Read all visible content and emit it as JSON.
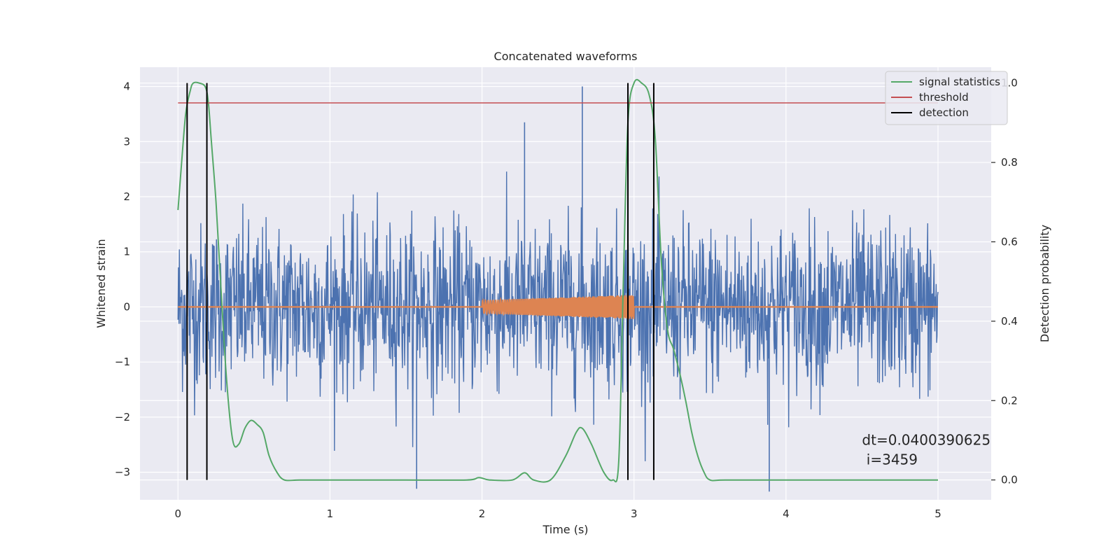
{
  "chart_data": {
    "type": "line",
    "title": "Concatenated waveforms",
    "xlabel": "Time (s)",
    "ylabel": "Whitened strain",
    "ylabel_right": "Detection probability",
    "xlim": [
      -0.25,
      5.35
    ],
    "ylim": [
      -3.5,
      4.35
    ],
    "ylim_right": [
      -0.05,
      1.04
    ],
    "xticks": [
      0,
      1,
      2,
      3,
      4,
      5
    ],
    "yticks": [
      -3,
      -2,
      -1,
      0,
      1,
      2,
      3,
      4
    ],
    "yticks_right": [
      0.0,
      0.2,
      0.4,
      0.6,
      0.8,
      1.0
    ],
    "xtick_labels": [
      "0",
      "1",
      "2",
      "3",
      "4",
      "5"
    ],
    "ytick_labels": [
      "−3",
      "−2",
      "−1",
      "0",
      "1",
      "2",
      "3",
      "4"
    ],
    "ytick_right_labels": [
      "0.0",
      "0.2",
      "0.4",
      "0.6",
      "0.8",
      "1.0"
    ],
    "grid": true,
    "legend_position": "top-right",
    "series": [
      {
        "name": "",
        "axis": "left",
        "color": "#4c72b0",
        "kind": "noise",
        "x_range": [
          0,
          5
        ],
        "peak_spikes": [
          [
            1.57,
            -3.3
          ],
          [
            2.66,
            4.0
          ],
          [
            3.89,
            -3.35
          ],
          [
            2.28,
            3.35
          ]
        ]
      },
      {
        "name": "",
        "axis": "left",
        "color": "#dd8452",
        "kind": "chirp",
        "baseline": [
          [
            0,
            0
          ],
          [
            5,
            0
          ]
        ],
        "chirp_range": [
          2.0,
          3.0
        ],
        "chirp_amplitude": [
          0.12,
          0.22
        ]
      },
      {
        "name": "signal statistics",
        "axis": "right",
        "color": "#55a868",
        "x": [
          0,
          0.02,
          0.05,
          0.08,
          0.1,
          0.14,
          0.18,
          0.2,
          0.22,
          0.25,
          0.28,
          0.32,
          0.36,
          0.4,
          0.44,
          0.48,
          0.52,
          0.56,
          0.6,
          0.65,
          0.7,
          0.8,
          1.0,
          1.5,
          1.9,
          1.98,
          2.05,
          2.2,
          2.28,
          2.34,
          2.45,
          2.55,
          2.62,
          2.66,
          2.72,
          2.8,
          2.86,
          2.9,
          2.93,
          2.96,
          3.0,
          3.05,
          3.1,
          3.14,
          3.18,
          3.22,
          3.26,
          3.3,
          3.34,
          3.38,
          3.42,
          3.46,
          3.5,
          3.6,
          4.0,
          4.5,
          5.0
        ],
        "values": [
          0.68,
          0.78,
          0.92,
          0.98,
          1.0,
          1.0,
          0.99,
          0.95,
          0.85,
          0.7,
          0.5,
          0.25,
          0.1,
          0.09,
          0.13,
          0.15,
          0.14,
          0.12,
          0.06,
          0.02,
          0.0,
          0.0,
          0.0,
          0.0,
          0.0,
          0.006,
          0.0,
          0.0,
          0.018,
          0.0,
          0.0,
          0.06,
          0.12,
          0.13,
          0.09,
          0.02,
          0.0,
          0.05,
          0.5,
          0.9,
          1.0,
          1.0,
          0.97,
          0.86,
          0.55,
          0.38,
          0.33,
          0.27,
          0.2,
          0.12,
          0.06,
          0.02,
          0.0,
          0.0,
          0.0,
          0.0,
          0.0
        ]
      },
      {
        "name": "threshold",
        "axis": "right",
        "color": "#c44e52",
        "x": [
          0,
          5
        ],
        "values": [
          0.95,
          0.95
        ]
      },
      {
        "name": "detection",
        "axis": "right",
        "color": "#000000",
        "kind": "vlines",
        "x": [
          0.06,
          0.19,
          2.96,
          3.13
        ],
        "range": [
          0.0,
          1.0
        ]
      }
    ],
    "annotation": {
      "line1": "dt=0.0400390625",
      "line2": " i=3459",
      "x": 4.5,
      "y": -2.5
    }
  }
}
